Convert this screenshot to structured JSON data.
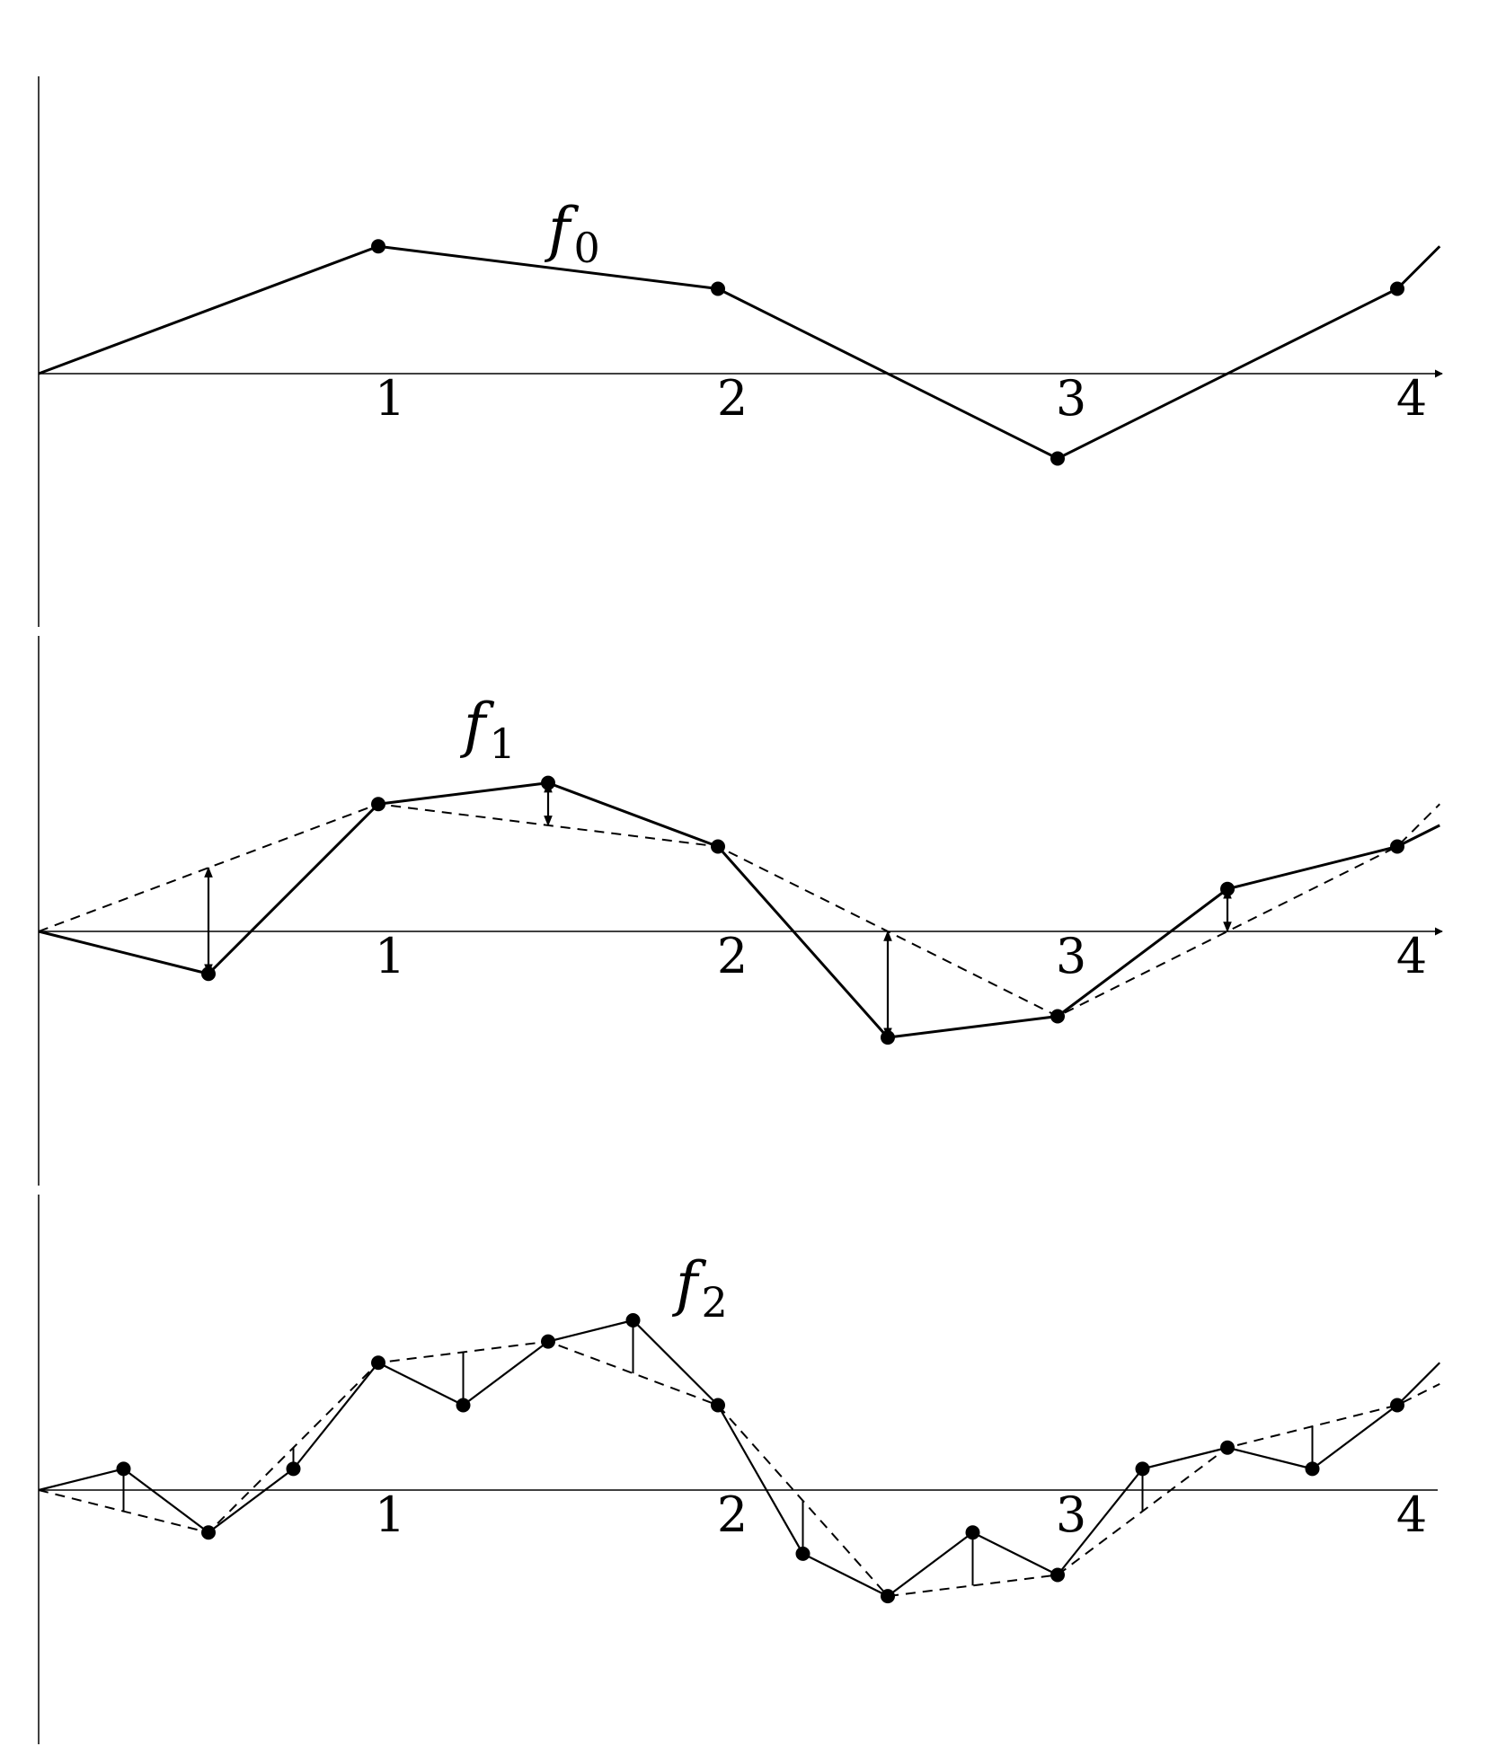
{
  "tick_labels": [
    "1",
    "2",
    "3",
    "4"
  ],
  "panels": [
    {
      "letter": "f",
      "subscript": "0",
      "points": [
        [
          0,
          0
        ],
        [
          1,
          0.75
        ],
        [
          2,
          0.5
        ],
        [
          3,
          -0.5
        ],
        [
          4,
          0.5
        ],
        [
          4.125,
          0.75
        ]
      ],
      "dots": [
        1,
        2,
        3,
        4
      ],
      "prev": null,
      "arrows": []
    },
    {
      "letter": "f",
      "subscript": "1",
      "points": [
        [
          0,
          0
        ],
        [
          0.5,
          -0.25
        ],
        [
          1,
          0.75
        ],
        [
          1.5,
          0.875
        ],
        [
          2,
          0.5
        ],
        [
          2.5,
          -0.625
        ],
        [
          3,
          -0.5
        ],
        [
          3.5,
          0.25
        ],
        [
          4,
          0.5
        ],
        [
          4.125,
          0.625
        ]
      ],
      "dots": [
        1,
        2,
        3,
        4,
        5,
        6,
        7,
        8
      ],
      "prev": [
        [
          0,
          0
        ],
        [
          1,
          0.75
        ],
        [
          2,
          0.5
        ],
        [
          3,
          -0.5
        ],
        [
          4,
          0.5
        ],
        [
          4.125,
          0.75
        ]
      ],
      "arrows": [
        [
          0.5,
          0.375,
          -0.25
        ],
        [
          1.5,
          0.625,
          0.875
        ],
        [
          2.5,
          0,
          -0.625
        ],
        [
          3.5,
          0,
          0.25
        ]
      ]
    },
    {
      "letter": "f",
      "subscript": "2",
      "points": [
        [
          0,
          0
        ],
        [
          0.25,
          0.125
        ],
        [
          0.5,
          -0.25
        ],
        [
          0.75,
          0.125
        ],
        [
          1,
          0.75
        ],
        [
          1.25,
          0.5
        ],
        [
          1.5,
          0.875
        ],
        [
          1.75,
          1
        ],
        [
          2,
          0.5
        ],
        [
          2.25,
          -0.375
        ],
        [
          2.5,
          -0.625
        ],
        [
          2.75,
          -0.25
        ],
        [
          3,
          -0.5
        ],
        [
          3.25,
          0.125
        ],
        [
          3.5,
          0.25
        ],
        [
          3.75,
          0.125
        ],
        [
          4,
          0.5
        ],
        [
          4.125,
          0.75
        ]
      ],
      "dots": [
        1,
        2,
        3,
        4,
        5,
        6,
        7,
        8,
        9,
        10,
        11,
        12,
        13,
        14,
        15,
        16
      ],
      "prev": [
        [
          0,
          0
        ],
        [
          0.5,
          -0.25
        ],
        [
          1,
          0.75
        ],
        [
          1.5,
          0.875
        ],
        [
          2,
          0.5
        ],
        [
          2.5,
          -0.625
        ],
        [
          3,
          -0.5
        ],
        [
          3.5,
          0.25
        ],
        [
          4,
          0.5
        ],
        [
          4.125,
          0.625
        ]
      ],
      "ticks": [
        [
          0.25,
          -0.125,
          0.125
        ],
        [
          0.75,
          0.25,
          0.125
        ],
        [
          1.25,
          0.8125,
          0.5
        ],
        [
          1.75,
          0.6875,
          1
        ],
        [
          2.25,
          -0.0625,
          -0.375
        ],
        [
          2.75,
          -0.5625,
          -0.25
        ],
        [
          3.25,
          -0.125,
          0.125
        ],
        [
          3.75,
          0.375,
          0.125
        ]
      ]
    }
  ]
}
